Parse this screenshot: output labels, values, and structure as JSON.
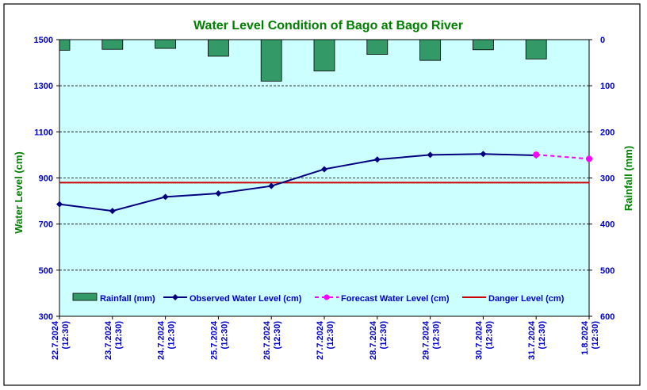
{
  "chart_data": {
    "type": "bar+line",
    "title": "Water Level Condition of Bago at Bago River",
    "ylabel_left": "Water Level (cm)",
    "ylabel_right": "Rainfall (mm)",
    "ylim_left": [
      300,
      1500
    ],
    "yticks_left": [
      300,
      500,
      700,
      900,
      1100,
      1300,
      1500
    ],
    "ylim_right": [
      0,
      600
    ],
    "yticks_right": [
      0,
      100,
      200,
      300,
      400,
      500,
      600
    ],
    "right_axis_inverted": true,
    "grid": "horizontal dashed",
    "categories": [
      {
        "date": "22.7.2024",
        "time": "(12:30)"
      },
      {
        "date": "23.7.2024",
        "time": "(12:30)"
      },
      {
        "date": "24.7.2024",
        "time": "(12:30)"
      },
      {
        "date": "25.7.2024",
        "time": "(12:30)"
      },
      {
        "date": "26.7.2024",
        "time": "(12:30)"
      },
      {
        "date": "27.7.2024",
        "time": "(12:30)"
      },
      {
        "date": "28.7.2024",
        "time": "(12:30)"
      },
      {
        "date": "29.7.2024",
        "time": "(12:30)"
      },
      {
        "date": "30.7.2024",
        "time": "(12:30)"
      },
      {
        "date": "31.7.2024",
        "time": "(12:30)"
      },
      {
        "date": "1.8.2024",
        "time": "(12:30)"
      }
    ],
    "series": [
      {
        "name": "Rainfall (mm)",
        "type": "bar",
        "axis": "right",
        "color": "#339966",
        "values": [
          23,
          21,
          19,
          36,
          90,
          68,
          32,
          45,
          22,
          42,
          null
        ]
      },
      {
        "name": "Observed Water Level (cm)",
        "type": "line",
        "axis": "left",
        "color": "#000080",
        "values": [
          786,
          757,
          818,
          833,
          865,
          938,
          980,
          1000,
          1004,
          998,
          null
        ]
      },
      {
        "name": "Forecast Water Level (cm)",
        "type": "dashed-line",
        "axis": "left",
        "color": "#FF00FF",
        "values": [
          null,
          null,
          null,
          null,
          null,
          null,
          null,
          null,
          null,
          1001,
          983
        ]
      },
      {
        "name": "Danger Level (cm)",
        "type": "hline",
        "axis": "left",
        "color": "#CC0000",
        "value": 880
      }
    ],
    "legend": "bottom, inside plot"
  }
}
